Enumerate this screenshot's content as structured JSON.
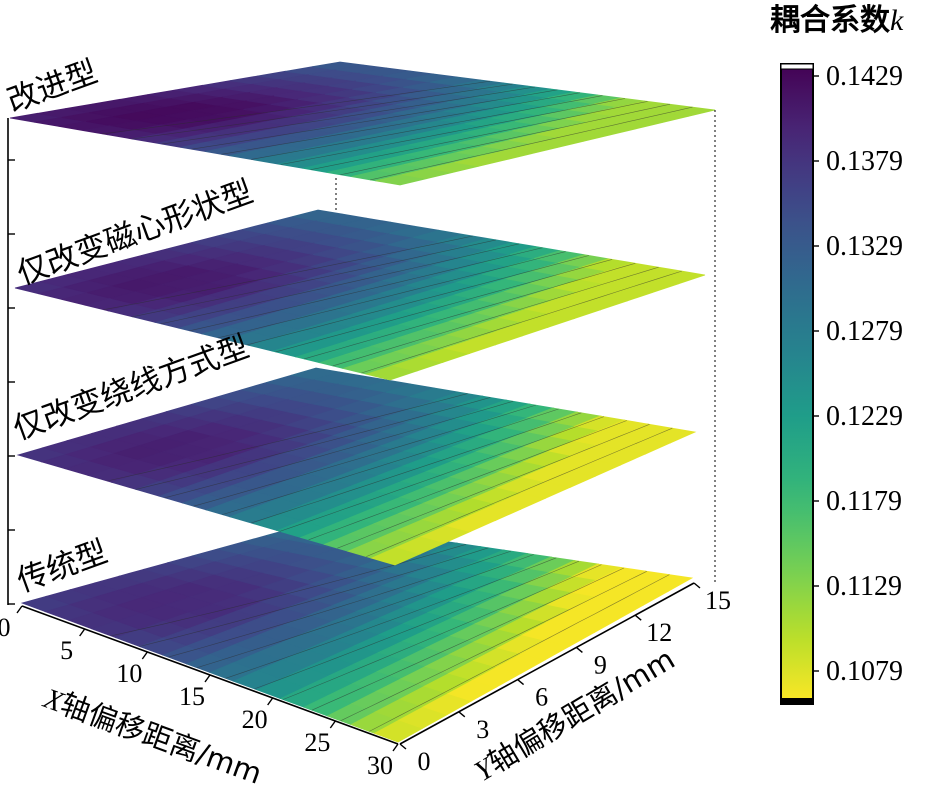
{
  "chart_data": {
    "type": "heatmap",
    "title": "",
    "colorbar": {
      "title": "耦合系数",
      "title_symbol": "k",
      "ticks": [
        "0.1429",
        "0.1379",
        "0.1329",
        "0.1279",
        "0.1229",
        "0.1179",
        "0.1129",
        "0.1079"
      ],
      "range": [
        0.105,
        0.1435
      ],
      "colormap": "viridis-reversed"
    },
    "x_axis": {
      "label_symbol": "X",
      "label": "轴偏移距离/mm",
      "ticks": [
        "0",
        "5",
        "10",
        "15",
        "20",
        "25",
        "30"
      ],
      "range": [
        0,
        30
      ]
    },
    "y_axis": {
      "label_symbol": "Y",
      "label": "轴偏移距离/mm",
      "ticks": [
        "0",
        "3",
        "6",
        "9",
        "12",
        "15"
      ],
      "range": [
        0,
        15
      ]
    },
    "series": [
      {
        "name": "传统型",
        "k_max": 0.1395,
        "k_min": 0.1055
      },
      {
        "name": "仅改变绕线方式型",
        "k_max": 0.1405,
        "k_min": 0.1065
      },
      {
        "name": "仅改变磁心形状型",
        "k_max": 0.1412,
        "k_min": 0.1085
      },
      {
        "name": "改进型",
        "k_max": 0.1429,
        "k_min": 0.1105
      }
    ]
  }
}
